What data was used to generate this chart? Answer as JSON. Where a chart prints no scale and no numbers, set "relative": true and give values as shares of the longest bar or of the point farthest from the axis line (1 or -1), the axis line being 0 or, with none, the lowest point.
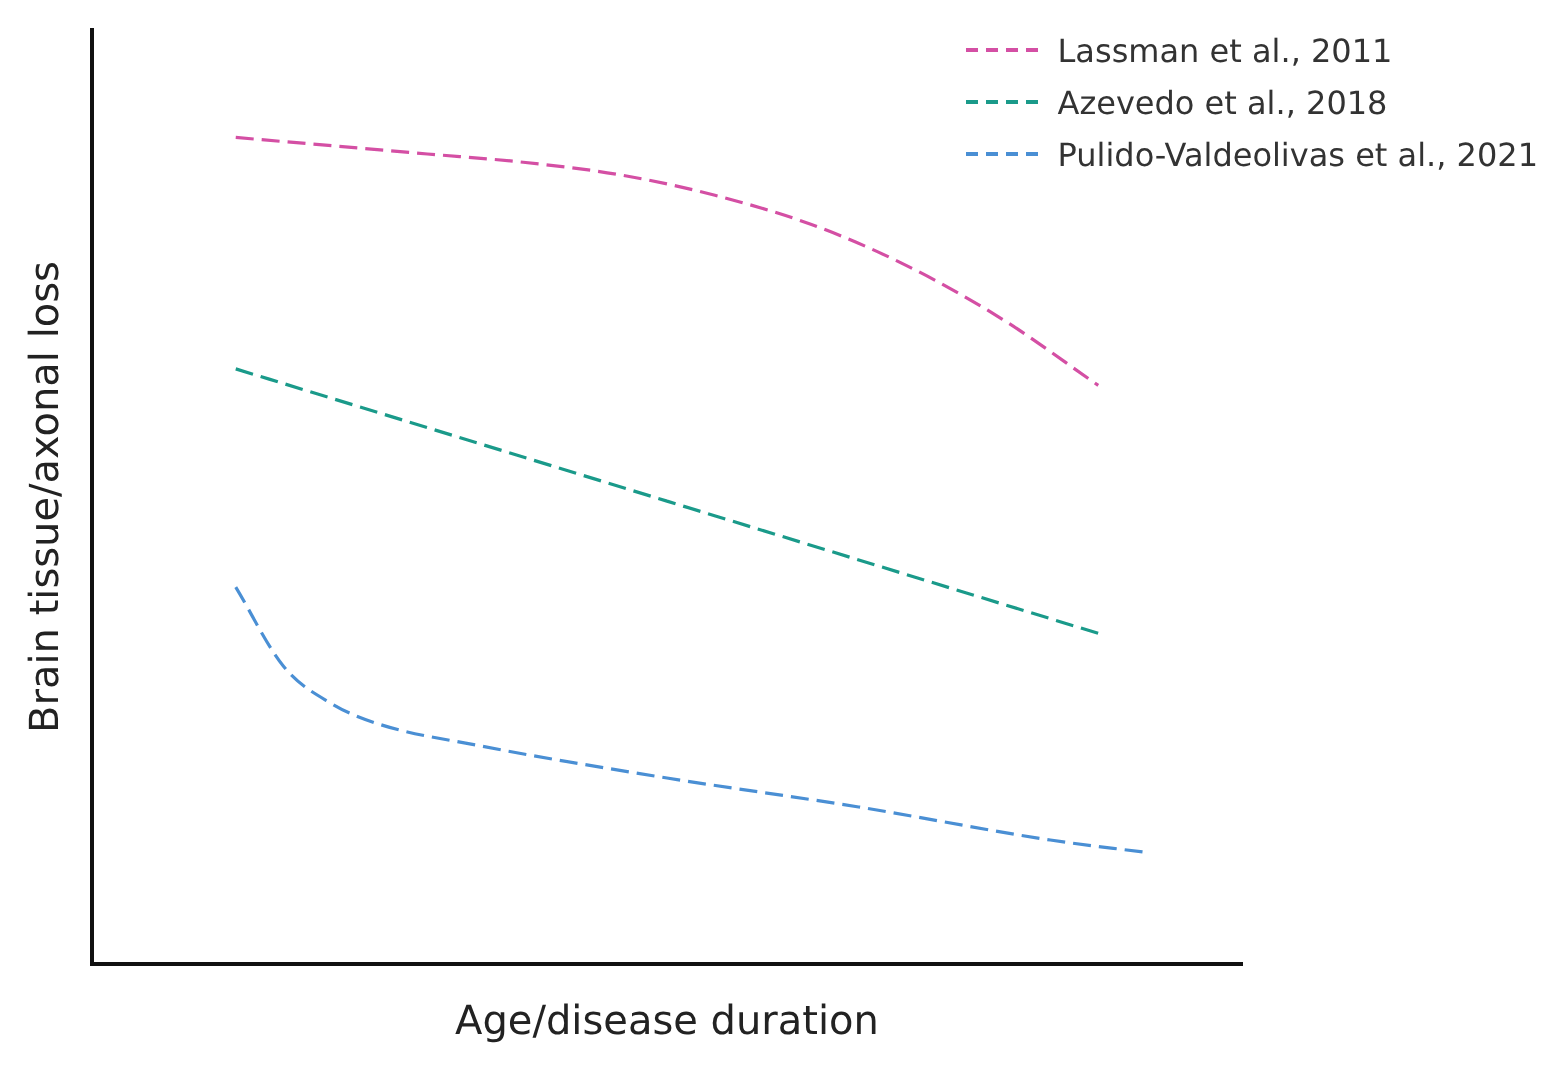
{
  "chart_data": {
    "type": "line",
    "relative": true,
    "xlabel": "Age/disease duration",
    "ylabel": "Brain tissue/axonal loss",
    "legend": "top right",
    "line_style": "dashed",
    "marker": "none",
    "grid": false,
    "categories": [
      null,
      null,
      null,
      null,
      null,
      null,
      null,
      null,
      null,
      null,
      null,
      null,
      null,
      null,
      null,
      null,
      null,
      null,
      null,
      null,
      null,
      null,
      null,
      null,
      null
    ],
    "series": [
      {
        "name": "Lassman et al., 2011",
        "color": "#d44fa4",
        "values": [
          null,
          null,
          null,
          1.0,
          null,
          0.99,
          null,
          0.98,
          null,
          0.97,
          null,
          0.955,
          null,
          0.93,
          null,
          0.895,
          null,
          0.845,
          null,
          0.78,
          null,
          0.7,
          null,
          null,
          null
        ]
      },
      {
        "name": "Azevedo et al., 2018",
        "color": "#1a9a8a",
        "values": [
          null,
          null,
          null,
          0.72,
          null,
          null,
          null,
          null,
          null,
          null,
          null,
          null,
          0.56,
          null,
          null,
          null,
          null,
          null,
          null,
          null,
          null,
          0.4,
          null,
          null,
          null
        ]
      },
      {
        "name": "Pulido-Valdeolivas et al., 2021",
        "color": "#4a8fd4",
        "values": [
          null,
          null,
          null,
          0.456,
          0.36,
          0.315,
          0.29,
          null,
          0.265,
          null,
          null,
          null,
          0.225,
          null,
          null,
          null,
          0.19,
          null,
          null,
          null,
          0.15,
          null,
          0.135,
          null,
          null
        ]
      }
    ]
  }
}
